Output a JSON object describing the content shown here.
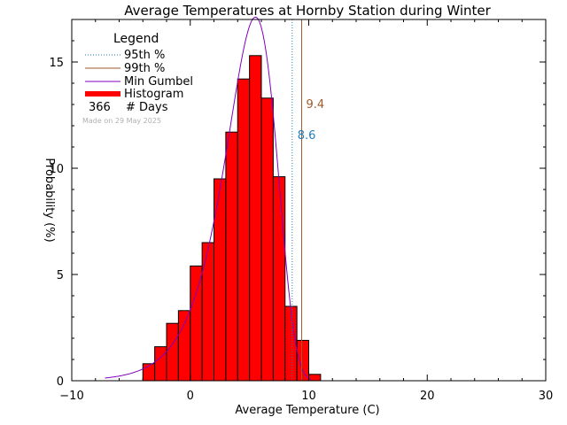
{
  "chart_data": {
    "type": "bar",
    "title": "Average Temperatures at Hornby Station during Winter",
    "xlabel": "Average Temperature (C)",
    "ylabel": "Probability (%)",
    "xlim": [
      -10,
      30
    ],
    "ylim": [
      0,
      17
    ],
    "xticks": [
      -10,
      0,
      10,
      20,
      30
    ],
    "yticks": [
      0,
      5,
      10,
      15
    ],
    "bin_width": 1,
    "histogram": {
      "name": "Histogram",
      "bin_starts": [
        -4,
        -3,
        -2,
        -1,
        0,
        1,
        2,
        3,
        4,
        5,
        6,
        7,
        8,
        9,
        10
      ],
      "values": [
        0.8,
        1.6,
        2.7,
        3.3,
        5.4,
        6.5,
        9.5,
        11.7,
        14.2,
        15.3,
        13.3,
        9.6,
        3.5,
        1.9,
        0.3
      ],
      "color": "#ff0000"
    },
    "gumbel": {
      "name": "Min Gumbel",
      "location": 5.5,
      "scale": 2.15,
      "x_start": -7.2,
      "x_end": 10.2,
      "color": "#8000c0"
    },
    "p95": {
      "name": "95th %",
      "value": 8.6,
      "label": "8.6",
      "color": "#2080c0"
    },
    "p99": {
      "name": "99th %",
      "value": 9.4,
      "label": "9.4",
      "color": "#a05a2c"
    },
    "legend": {
      "title": "Legend",
      "days_count": "366",
      "days_label": "# Days",
      "placement": "top-left"
    },
    "made_on": "Made on 29 May 2025"
  }
}
